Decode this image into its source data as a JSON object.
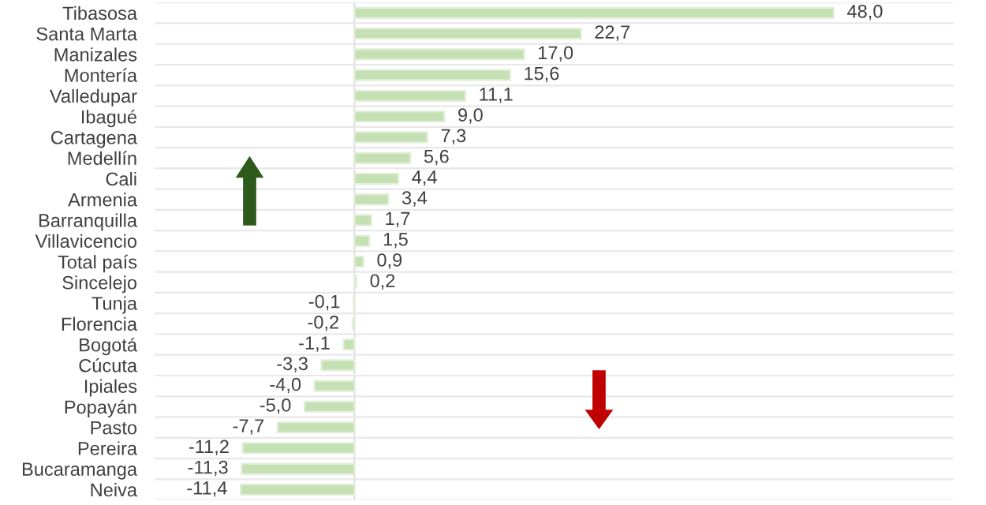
{
  "chart_data": {
    "type": "bar",
    "orientation": "horizontal",
    "categories": [
      "Tibasosa",
      "Santa Marta",
      "Manizales",
      "Montería",
      "Valledupar",
      "Ibagué",
      "Cartagena",
      "Medellín",
      "Cali",
      "Armenia",
      "Barranquilla",
      "Villavicencio",
      "Total país",
      "Sincelejo",
      "Tunja",
      "Florencia",
      "Bogotá",
      "Cúcuta",
      "Ipiales",
      "Popayán",
      "Pasto",
      "Pereira",
      "Bucaramanga",
      "Neiva"
    ],
    "values": [
      48.0,
      22.7,
      17.0,
      15.6,
      11.1,
      9.0,
      7.3,
      5.6,
      4.4,
      3.4,
      1.7,
      1.5,
      0.9,
      0.2,
      -0.1,
      -0.2,
      -1.1,
      -3.3,
      -4.0,
      -5.0,
      -7.7,
      -11.2,
      -11.3,
      -11.4
    ],
    "value_labels": [
      "48,0",
      "22,7",
      "17,0",
      "15,6",
      "11,1",
      "9,0",
      "7,3",
      "5,6",
      "4,4",
      "3,4",
      "1,7",
      "1,5",
      "0,9",
      "0,2",
      "-0,1",
      "-0,2",
      "-1,1",
      "-3,3",
      "-4,0",
      "-5,0",
      "-7,7",
      "-11,2",
      "-11,3",
      "-11,4"
    ],
    "color": "#c5e0b3",
    "xlim": [
      -20,
      60
    ],
    "tick_labels": "y",
    "grid": "y"
  }
}
